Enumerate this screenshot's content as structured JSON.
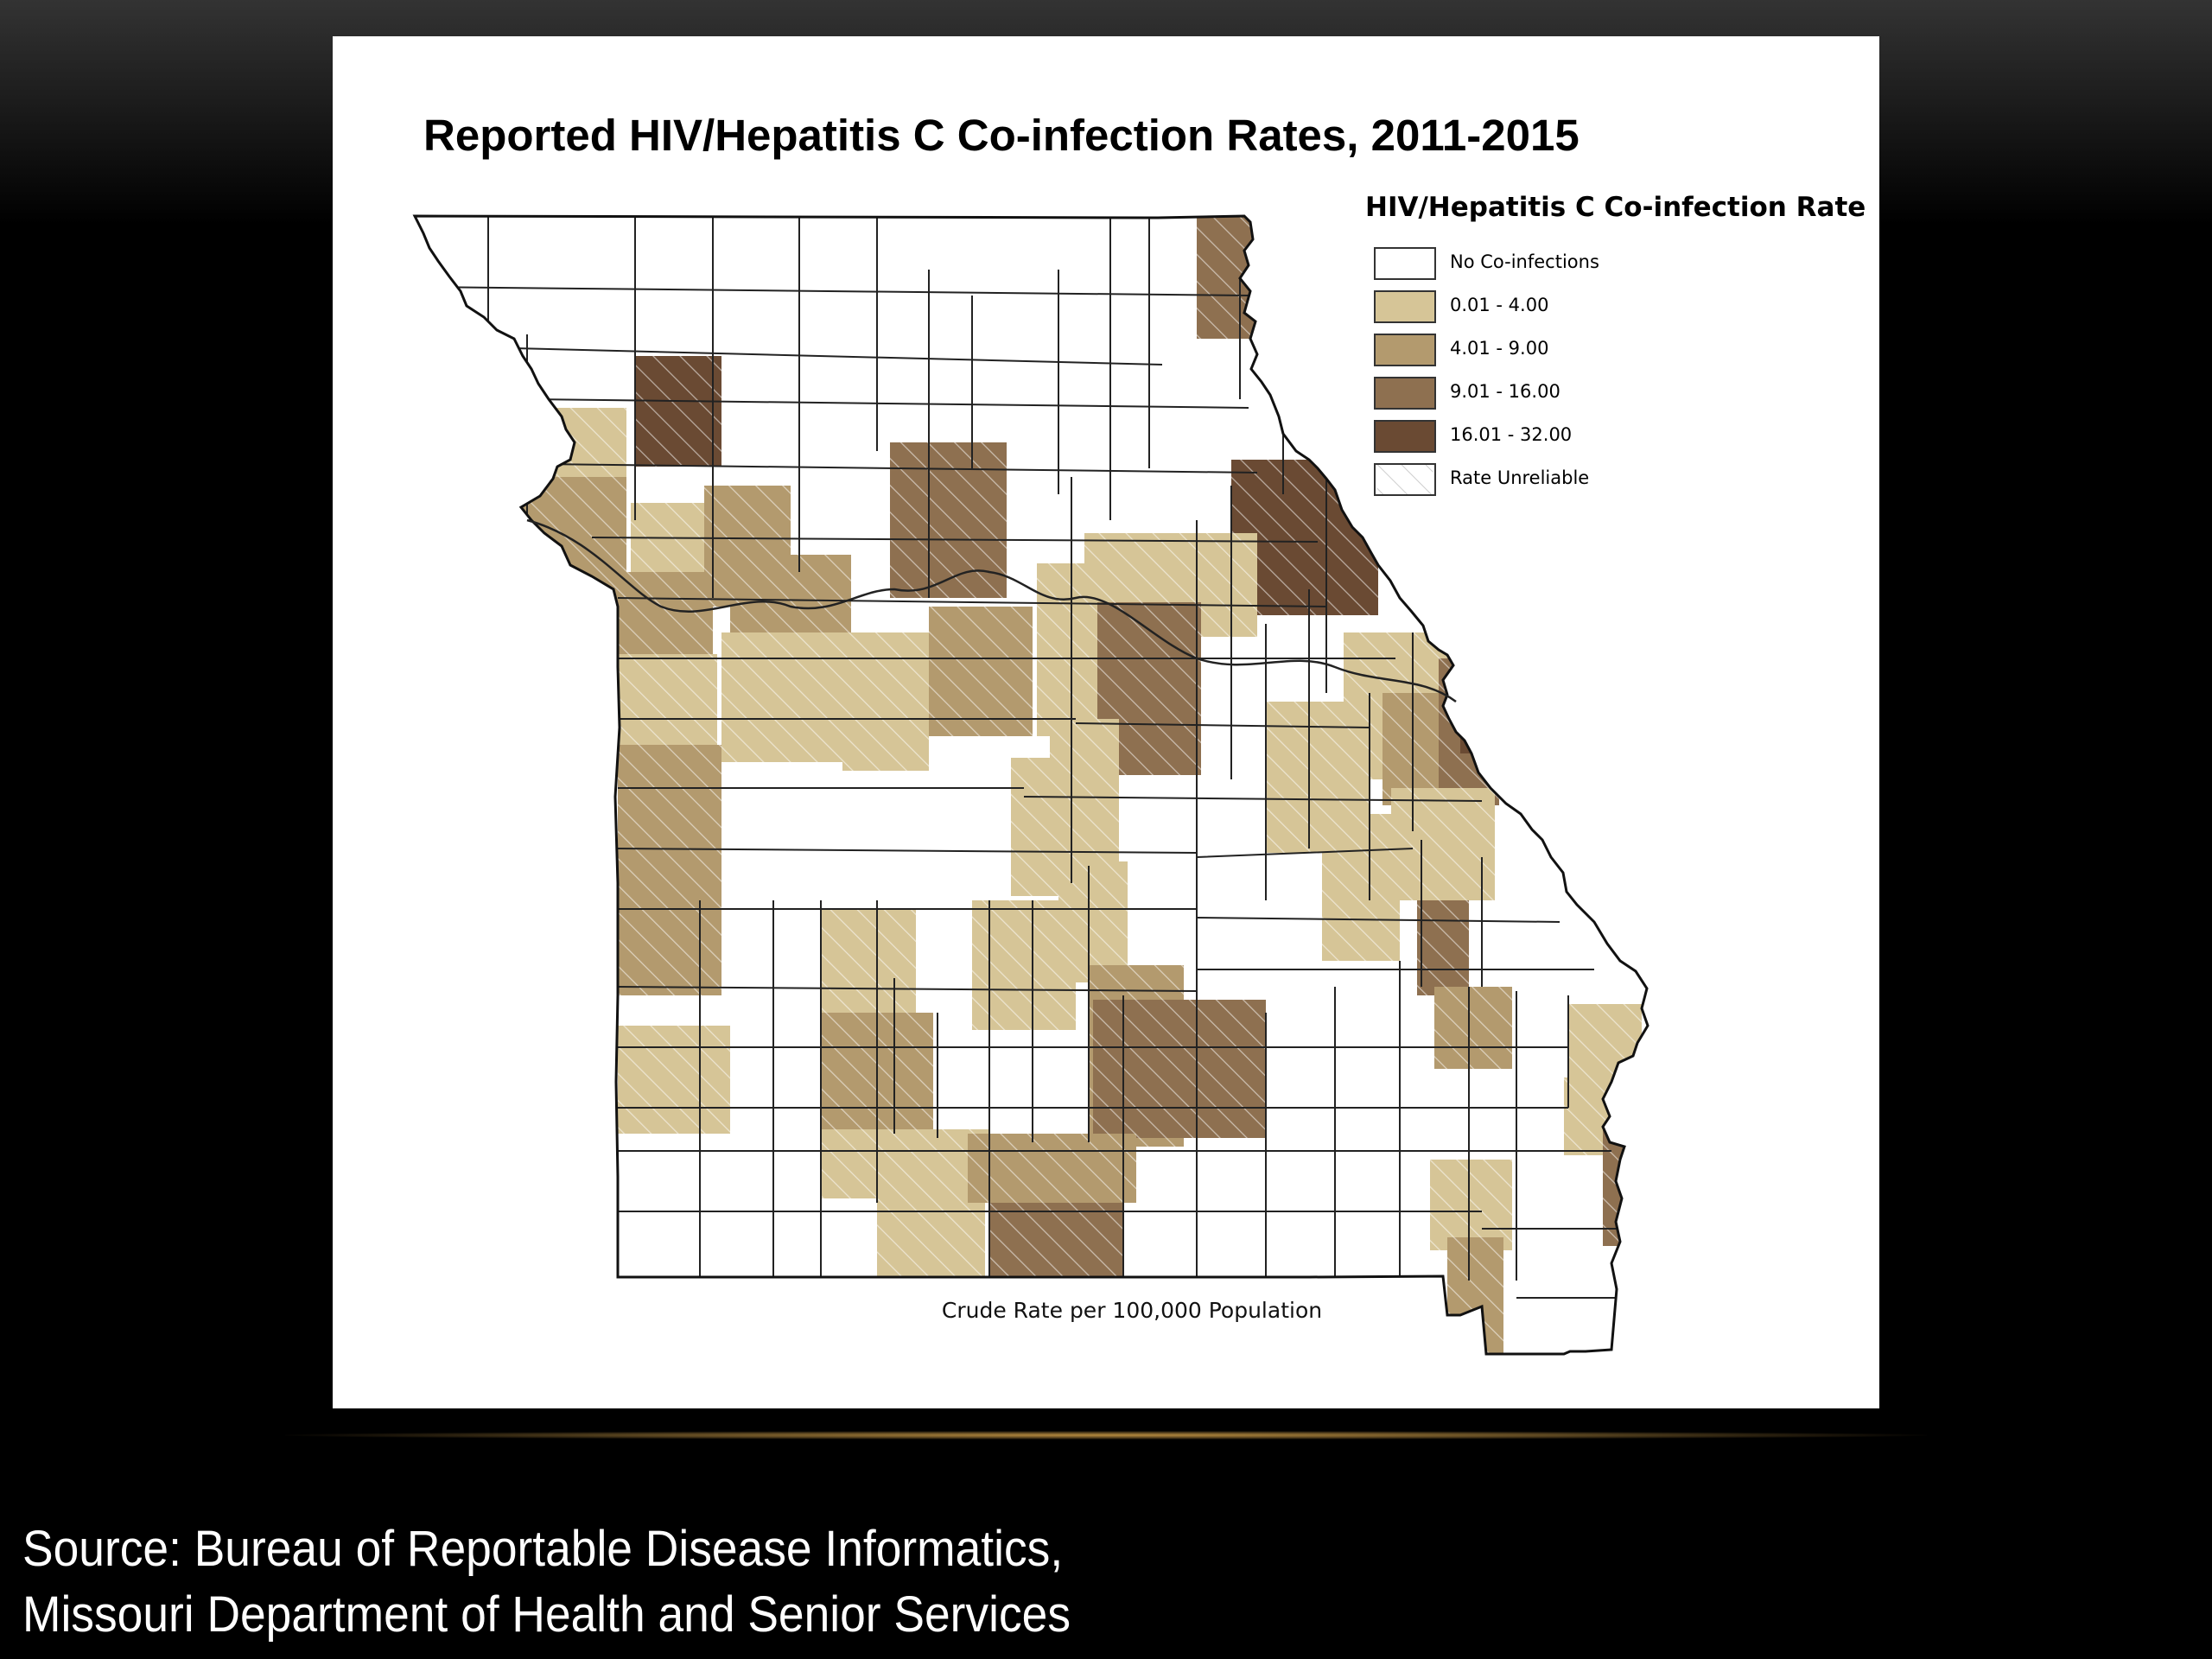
{
  "map": {
    "title": "Reported HIV/Hepatitis C Co-infection Rates, 2011-2015",
    "caption": "Crude Rate per 100,000 Population",
    "legend": {
      "title": "HIV/Hepatitis C Co-infection Rate",
      "items": [
        {
          "label": "No Co-infections",
          "color": "#ffffff",
          "hatch": false
        },
        {
          "label": "0.01 - 4.00",
          "color": "#d6c597",
          "hatch": false
        },
        {
          "label": "4.01 - 9.00",
          "color": "#b39a6e",
          "hatch": false
        },
        {
          "label": "9.01 - 16.00",
          "color": "#8e7050",
          "hatch": false
        },
        {
          "label": "16.01 - 32.00",
          "color": "#6a4a33",
          "hatch": false
        },
        {
          "label": "Rate Unreliable",
          "color": "#ffffff",
          "hatch": true
        }
      ]
    }
  },
  "source": {
    "line1": "Source:  Bureau of Reportable Disease Informatics,",
    "line2": "Missouri Department of Health and Senior Services"
  }
}
